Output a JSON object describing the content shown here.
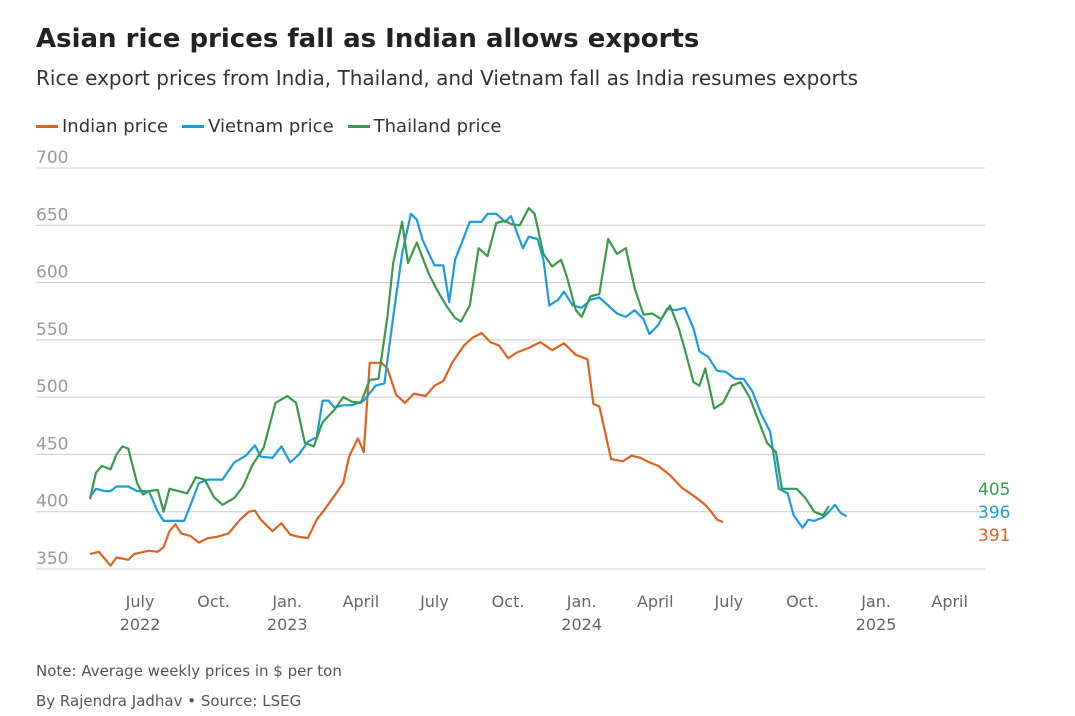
{
  "header": {
    "title": "Asian rice prices fall as Indian allows exports",
    "subtitle": "Rice export prices from India, Thailand, and Vietnam fall as India resumes exports"
  },
  "footer": {
    "note": "Note: Average weekly prices in $ per ton",
    "byline": "By Rajendra Jadhav • Source: LSEG"
  },
  "colors": {
    "indian": "#e0621f",
    "vietnam": "#1a9de0",
    "thailand": "#3a9a4a",
    "grid": "#cccccc",
    "tick": "#999999"
  },
  "chart_data": {
    "type": "line",
    "title": "Asian rice prices fall as Indian allows exports",
    "subtitle": "Rice export prices from India, Thailand, and Vietnam fall as India resumes exports",
    "xlabel": "",
    "ylabel": "",
    "ylim": [
      350,
      700
    ],
    "yticks": [
      350,
      400,
      450,
      500,
      550,
      600,
      650,
      700
    ],
    "grid": true,
    "legend_position": "top-left",
    "xticks": [
      {
        "t": 2022.5,
        "line1": "July",
        "line2": "2022"
      },
      {
        "t": 2022.75,
        "line1": "Oct.",
        "line2": ""
      },
      {
        "t": 2023.0,
        "line1": "Jan.",
        "line2": "2023"
      },
      {
        "t": 2023.25,
        "line1": "April",
        "line2": ""
      },
      {
        "t": 2023.5,
        "line1": "July",
        "line2": ""
      },
      {
        "t": 2023.75,
        "line1": "Oct.",
        "line2": ""
      },
      {
        "t": 2024.0,
        "line1": "Jan.",
        "line2": "2024"
      },
      {
        "t": 2024.25,
        "line1": "April",
        "line2": ""
      },
      {
        "t": 2024.5,
        "line1": "July",
        "line2": ""
      },
      {
        "t": 2024.75,
        "line1": "Oct.",
        "line2": ""
      },
      {
        "t": 2025.0,
        "line1": "Jan.",
        "line2": "2025"
      },
      {
        "t": 2025.25,
        "line1": "April",
        "line2": ""
      }
    ],
    "series": [
      {
        "name": "Indian price",
        "color": "#e0621f",
        "last_label": "391",
        "points": [
          [
            2022.33,
            363
          ],
          [
            2022.36,
            365
          ],
          [
            2022.4,
            353
          ],
          [
            2022.42,
            360
          ],
          [
            2022.46,
            358
          ],
          [
            2022.48,
            363
          ],
          [
            2022.53,
            366
          ],
          [
            2022.56,
            365
          ],
          [
            2022.58,
            369
          ],
          [
            2022.6,
            383
          ],
          [
            2022.62,
            389
          ],
          [
            2022.64,
            381
          ],
          [
            2022.67,
            379
          ],
          [
            2022.7,
            373
          ],
          [
            2022.73,
            377
          ],
          [
            2022.76,
            378
          ],
          [
            2022.8,
            381
          ],
          [
            2022.84,
            393
          ],
          [
            2022.87,
            400
          ],
          [
            2022.89,
            401
          ],
          [
            2022.91,
            393
          ],
          [
            2022.95,
            383
          ],
          [
            2022.98,
            390
          ],
          [
            2023.01,
            380
          ],
          [
            2023.04,
            378
          ],
          [
            2023.07,
            377
          ],
          [
            2023.1,
            393
          ],
          [
            2023.13,
            403
          ],
          [
            2023.16,
            414
          ],
          [
            2023.19,
            425
          ],
          [
            2023.21,
            448
          ],
          [
            2023.24,
            464
          ],
          [
            2023.26,
            452
          ],
          [
            2023.28,
            530
          ],
          [
            2023.32,
            530
          ],
          [
            2023.34,
            525
          ],
          [
            2023.37,
            502
          ],
          [
            2023.4,
            495
          ],
          [
            2023.43,
            503
          ],
          [
            2023.47,
            501
          ],
          [
            2023.5,
            510
          ],
          [
            2023.53,
            514
          ],
          [
            2023.56,
            530
          ],
          [
            2023.6,
            545
          ],
          [
            2023.63,
            552
          ],
          [
            2023.66,
            556
          ],
          [
            2023.69,
            548
          ],
          [
            2023.72,
            545
          ],
          [
            2023.75,
            534
          ],
          [
            2023.78,
            539
          ],
          [
            2023.82,
            543
          ],
          [
            2023.86,
            548
          ],
          [
            2023.9,
            541
          ],
          [
            2023.94,
            547
          ],
          [
            2023.98,
            537
          ],
          [
            2024.02,
            533
          ],
          [
            2024.04,
            494
          ],
          [
            2024.06,
            492
          ],
          [
            2024.1,
            446
          ],
          [
            2024.14,
            444
          ],
          [
            2024.17,
            449
          ],
          [
            2024.2,
            447
          ],
          [
            2024.23,
            443
          ],
          [
            2024.26,
            440
          ],
          [
            2024.3,
            432
          ],
          [
            2024.34,
            421
          ],
          [
            2024.38,
            414
          ],
          [
            2024.42,
            406
          ],
          [
            2024.44,
            400
          ],
          [
            2024.46,
            393
          ],
          [
            2024.48,
            391
          ]
        ]
      },
      {
        "name": "Vietnam price",
        "color": "#1a9de0",
        "last_label": "396",
        "points": [
          [
            2022.33,
            413
          ],
          [
            2022.35,
            420
          ],
          [
            2022.38,
            418
          ],
          [
            2022.4,
            418
          ],
          [
            2022.42,
            422
          ],
          [
            2022.46,
            422
          ],
          [
            2022.49,
            418
          ],
          [
            2022.53,
            418
          ],
          [
            2022.56,
            400
          ],
          [
            2022.58,
            392
          ],
          [
            2022.62,
            392
          ],
          [
            2022.65,
            392
          ],
          [
            2022.67,
            405
          ],
          [
            2022.7,
            425
          ],
          [
            2022.73,
            428
          ],
          [
            2022.78,
            428
          ],
          [
            2022.82,
            443
          ],
          [
            2022.86,
            449
          ],
          [
            2022.89,
            458
          ],
          [
            2022.91,
            448
          ],
          [
            2022.95,
            447
          ],
          [
            2022.98,
            457
          ],
          [
            2023.01,
            443
          ],
          [
            2023.04,
            450
          ],
          [
            2023.07,
            461
          ],
          [
            2023.1,
            465
          ],
          [
            2023.12,
            497
          ],
          [
            2023.14,
            497
          ],
          [
            2023.16,
            491
          ],
          [
            2023.19,
            493
          ],
          [
            2023.22,
            493
          ],
          [
            2023.26,
            497
          ],
          [
            2023.3,
            510
          ],
          [
            2023.33,
            512
          ],
          [
            2023.36,
            570
          ],
          [
            2023.39,
            625
          ],
          [
            2023.42,
            660
          ],
          [
            2023.44,
            655
          ],
          [
            2023.46,
            637
          ],
          [
            2023.5,
            615
          ],
          [
            2023.53,
            615
          ],
          [
            2023.55,
            583
          ],
          [
            2023.57,
            620
          ],
          [
            2023.59,
            633
          ],
          [
            2023.62,
            653
          ],
          [
            2023.66,
            653
          ],
          [
            2023.68,
            660
          ],
          [
            2023.71,
            660
          ],
          [
            2023.74,
            653
          ],
          [
            2023.76,
            658
          ],
          [
            2023.8,
            630
          ],
          [
            2023.82,
            640
          ],
          [
            2023.85,
            638
          ],
          [
            2023.87,
            620
          ],
          [
            2023.89,
            580
          ],
          [
            2023.92,
            585
          ],
          [
            2023.94,
            592
          ],
          [
            2023.97,
            580
          ],
          [
            2024.0,
            578
          ],
          [
            2024.03,
            585
          ],
          [
            2024.06,
            587
          ],
          [
            2024.09,
            580
          ],
          [
            2024.12,
            573
          ],
          [
            2024.15,
            570
          ],
          [
            2024.18,
            576
          ],
          [
            2024.21,
            568
          ],
          [
            2024.23,
            555
          ],
          [
            2024.26,
            563
          ],
          [
            2024.29,
            577
          ],
          [
            2024.32,
            576
          ],
          [
            2024.35,
            578
          ],
          [
            2024.38,
            560
          ],
          [
            2024.4,
            540
          ],
          [
            2024.43,
            535
          ],
          [
            2024.46,
            523
          ],
          [
            2024.49,
            522
          ],
          [
            2024.52,
            516
          ],
          [
            2024.55,
            516
          ],
          [
            2024.58,
            505
          ],
          [
            2024.61,
            485
          ],
          [
            2024.64,
            470
          ],
          [
            2024.67,
            420
          ],
          [
            2024.7,
            416
          ],
          [
            2024.72,
            397
          ],
          [
            2024.75,
            386
          ],
          [
            2024.77,
            393
          ],
          [
            2024.79,
            392
          ],
          [
            2024.82,
            395
          ],
          [
            2024.84,
            400
          ],
          [
            2024.86,
            406
          ],
          [
            2024.88,
            399
          ],
          [
            2024.9,
            396
          ]
        ]
      },
      {
        "name": "Thailand price",
        "color": "#3a9a4a",
        "last_label": "405",
        "points": [
          [
            2022.33,
            411
          ],
          [
            2022.35,
            434
          ],
          [
            2022.37,
            440
          ],
          [
            2022.4,
            437
          ],
          [
            2022.42,
            450
          ],
          [
            2022.44,
            457
          ],
          [
            2022.46,
            455
          ],
          [
            2022.49,
            425
          ],
          [
            2022.51,
            415
          ],
          [
            2022.53,
            418
          ],
          [
            2022.56,
            419
          ],
          [
            2022.58,
            400
          ],
          [
            2022.6,
            420
          ],
          [
            2022.63,
            418
          ],
          [
            2022.66,
            416
          ],
          [
            2022.69,
            430
          ],
          [
            2022.72,
            428
          ],
          [
            2022.75,
            413
          ],
          [
            2022.78,
            406
          ],
          [
            2022.82,
            412
          ],
          [
            2022.85,
            422
          ],
          [
            2022.88,
            440
          ],
          [
            2022.92,
            456
          ],
          [
            2022.96,
            495
          ],
          [
            2023.0,
            501
          ],
          [
            2023.03,
            495
          ],
          [
            2023.06,
            460
          ],
          [
            2023.09,
            457
          ],
          [
            2023.12,
            478
          ],
          [
            2023.16,
            489
          ],
          [
            2023.19,
            500
          ],
          [
            2023.22,
            496
          ],
          [
            2023.25,
            495
          ],
          [
            2023.28,
            515
          ],
          [
            2023.31,
            516
          ],
          [
            2023.34,
            570
          ],
          [
            2023.36,
            617
          ],
          [
            2023.39,
            653
          ],
          [
            2023.41,
            617
          ],
          [
            2023.44,
            635
          ],
          [
            2023.48,
            608
          ],
          [
            2023.51,
            593
          ],
          [
            2023.54,
            580
          ],
          [
            2023.57,
            569
          ],
          [
            2023.59,
            566
          ],
          [
            2023.62,
            580
          ],
          [
            2023.65,
            630
          ],
          [
            2023.68,
            623
          ],
          [
            2023.71,
            652
          ],
          [
            2023.74,
            654
          ],
          [
            2023.76,
            651
          ],
          [
            2023.79,
            650
          ],
          [
            2023.82,
            665
          ],
          [
            2023.84,
            660
          ],
          [
            2023.87,
            625
          ],
          [
            2023.9,
            614
          ],
          [
            2023.93,
            620
          ],
          [
            2023.95,
            605
          ],
          [
            2023.98,
            576
          ],
          [
            2024.0,
            570
          ],
          [
            2024.03,
            588
          ],
          [
            2024.06,
            590
          ],
          [
            2024.09,
            638
          ],
          [
            2024.12,
            625
          ],
          [
            2024.15,
            630
          ],
          [
            2024.18,
            595
          ],
          [
            2024.21,
            572
          ],
          [
            2024.24,
            573
          ],
          [
            2024.27,
            568
          ],
          [
            2024.3,
            580
          ],
          [
            2024.33,
            560
          ],
          [
            2024.35,
            542
          ],
          [
            2024.38,
            513
          ],
          [
            2024.4,
            510
          ],
          [
            2024.42,
            525
          ],
          [
            2024.45,
            490
          ],
          [
            2024.48,
            495
          ],
          [
            2024.51,
            510
          ],
          [
            2024.54,
            513
          ],
          [
            2024.57,
            500
          ],
          [
            2024.6,
            480
          ],
          [
            2024.63,
            460
          ],
          [
            2024.66,
            452
          ],
          [
            2024.68,
            420
          ],
          [
            2024.7,
            420
          ],
          [
            2024.73,
            420
          ],
          [
            2024.76,
            412
          ],
          [
            2024.79,
            400
          ],
          [
            2024.82,
            397
          ],
          [
            2024.84,
            405
          ]
        ]
      }
    ]
  }
}
